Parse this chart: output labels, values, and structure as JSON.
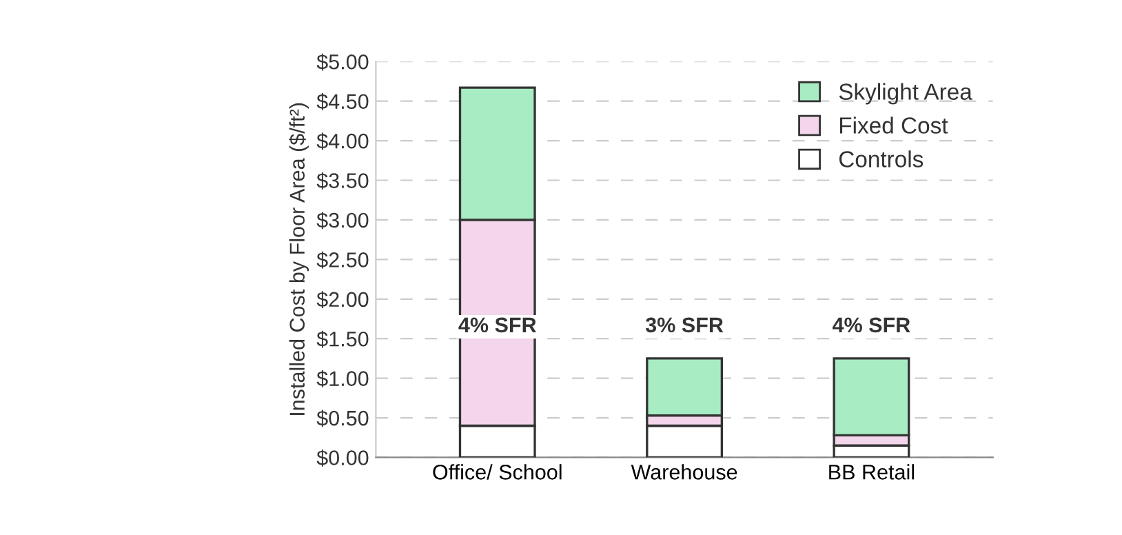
{
  "chart_data": {
    "type": "bar",
    "stacked": true,
    "ylabel": "Installed Cost by Floor Area ($/ft²)",
    "categories": [
      "Office/ School",
      "Warehouse",
      "BB Retail"
    ],
    "series": [
      {
        "name": "Controls",
        "color": "#ffffff",
        "values": [
          0.4,
          0.4,
          0.15
        ]
      },
      {
        "name": "Fixed Cost",
        "color": "#f3d6ec",
        "values": [
          2.6,
          0.13,
          0.13
        ]
      },
      {
        "name": "Skylight Area",
        "color": "#a8ecc4",
        "values": [
          1.67,
          0.72,
          0.97
        ]
      }
    ],
    "ylim": [
      0,
      5
    ],
    "yticks": [
      {
        "value": 0,
        "label": "$0.00"
      },
      {
        "value": 0.5,
        "label": "$0.50"
      },
      {
        "value": 1,
        "label": "$1.00"
      },
      {
        "value": 1.5,
        "label": "$1.50"
      },
      {
        "value": 2,
        "label": "$2.00"
      },
      {
        "value": 2.5,
        "label": "$2.50"
      },
      {
        "value": 3,
        "label": "$3.00"
      },
      {
        "value": 3.5,
        "label": "$3.50"
      },
      {
        "value": 4,
        "label": "$4.00"
      },
      {
        "value": 4.5,
        "label": "$4.50"
      },
      {
        "value": 5,
        "label": "$5.00"
      }
    ],
    "annotations": [
      "4% SFR",
      "3% SFR",
      "4% SFR"
    ],
    "grid": "y",
    "legend": "top right"
  }
}
